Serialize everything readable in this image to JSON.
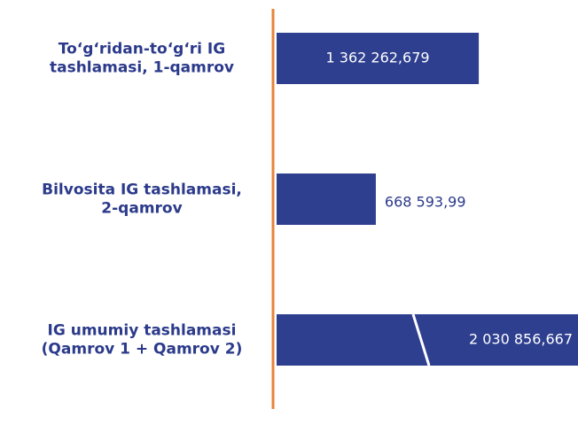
{
  "chart_data": {
    "type": "bar",
    "orientation": "horizontal",
    "categories": [
      [
        "To‘g‘ridan-to‘g‘ri IG",
        "tashlamasi, 1-qamrov"
      ],
      [
        "Bilvosita IG tashlamasi,",
        "2-qamrov"
      ],
      [
        "IG umumiy tashlamasi",
        "(Qamrov 1 + Qamrov  2)"
      ]
    ],
    "values": [
      1362262.679,
      668593.99,
      2030856.667
    ],
    "value_labels": [
      "1 362 262,679",
      "668 593,99",
      "2 030 856,667"
    ],
    "color": "#2e3f8f",
    "axis_color": "#e8833a"
  }
}
